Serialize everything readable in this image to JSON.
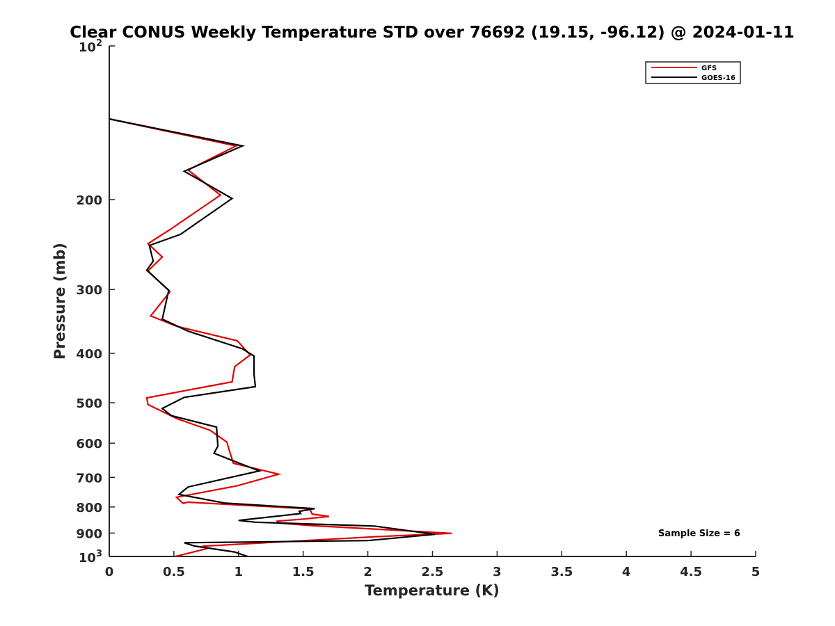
{
  "chart_data": {
    "type": "line",
    "title": "Clear CONUS Weekly Temperature STD over 76692 (19.15, -96.12) @ 2024-01-11",
    "xlabel": "Temperature (K)",
    "ylabel": "Pressure (mb)",
    "xlim": [
      0,
      5
    ],
    "ylim": [
      100,
      1000
    ],
    "yscale": "log",
    "y_reversed": true,
    "x_ticks": [
      "0",
      "0.5",
      "1",
      "1.5",
      "2",
      "2.5",
      "3",
      "3.5",
      "4",
      "4.5",
      "5"
    ],
    "y_ticks": [
      {
        "value": 100,
        "base": "10",
        "exp": "2"
      },
      {
        "value": 200,
        "label": "200"
      },
      {
        "value": 300,
        "label": "300"
      },
      {
        "value": 400,
        "label": "400"
      },
      {
        "value": 500,
        "label": "500"
      },
      {
        "value": 600,
        "label": "600"
      },
      {
        "value": 700,
        "label": "700"
      },
      {
        "value": 800,
        "label": "800"
      },
      {
        "value": 900,
        "label": "900"
      },
      {
        "value": 1000,
        "base": "10",
        "exp": "3"
      }
    ],
    "legend_position": "top-right",
    "annotation": "Sample Size = 6",
    "series": [
      {
        "name": "GFS",
        "color": "#e00000",
        "points": [
          [
            0.0,
            139
          ],
          [
            0.98,
            157
          ],
          [
            0.61,
            175
          ],
          [
            0.86,
            196
          ],
          [
            0.47,
            229
          ],
          [
            0.3,
            244
          ],
          [
            0.41,
            259
          ],
          [
            0.3,
            276
          ],
          [
            0.47,
            303
          ],
          [
            0.32,
            338
          ],
          [
            0.52,
            354
          ],
          [
            0.99,
            378
          ],
          [
            1.09,
            403
          ],
          [
            0.97,
            425
          ],
          [
            0.95,
            455
          ],
          [
            0.29,
            489
          ],
          [
            0.3,
            504
          ],
          [
            0.53,
            538
          ],
          [
            0.78,
            566
          ],
          [
            0.91,
            597
          ],
          [
            0.93,
            622
          ],
          [
            0.96,
            657
          ],
          [
            1.31,
            690
          ],
          [
            0.99,
            727
          ],
          [
            0.52,
            766
          ],
          [
            0.57,
            787
          ],
          [
            0.61,
            783
          ],
          [
            1.55,
            807
          ],
          [
            1.57,
            826
          ],
          [
            1.7,
            835
          ],
          [
            1.5,
            845
          ],
          [
            1.3,
            853
          ],
          [
            1.31,
            860
          ],
          [
            1.56,
            870
          ],
          [
            2.65,
            901
          ],
          [
            2.05,
            915
          ],
          [
            0.72,
            955
          ],
          [
            0.76,
            965
          ],
          [
            0.51,
            1000
          ]
        ]
      },
      {
        "name": "GOES-16",
        "color": "#000000",
        "points": [
          [
            0.0,
            139
          ],
          [
            1.03,
            157
          ],
          [
            0.58,
            176
          ],
          [
            0.95,
            199
          ],
          [
            0.55,
            234
          ],
          [
            0.31,
            246
          ],
          [
            0.34,
            264
          ],
          [
            0.29,
            275
          ],
          [
            0.46,
            301
          ],
          [
            0.41,
            343
          ],
          [
            0.61,
            362
          ],
          [
            1.03,
            392
          ],
          [
            1.12,
            405
          ],
          [
            1.12,
            440
          ],
          [
            1.13,
            465
          ],
          [
            0.58,
            488
          ],
          [
            0.41,
            513
          ],
          [
            0.48,
            530
          ],
          [
            0.83,
            558
          ],
          [
            0.84,
            608
          ],
          [
            0.81,
            628
          ],
          [
            1.16,
            680
          ],
          [
            0.61,
            731
          ],
          [
            0.54,
            756
          ],
          [
            0.89,
            786
          ],
          [
            1.59,
            806
          ],
          [
            1.47,
            816
          ],
          [
            1.48,
            824
          ],
          [
            1.0,
            850
          ],
          [
            1.13,
            857
          ],
          [
            2.05,
            872
          ],
          [
            2.52,
            905
          ],
          [
            2.0,
            931
          ],
          [
            0.58,
            940
          ],
          [
            0.66,
            954
          ],
          [
            0.97,
            980
          ],
          [
            1.07,
            1000
          ]
        ]
      }
    ]
  }
}
